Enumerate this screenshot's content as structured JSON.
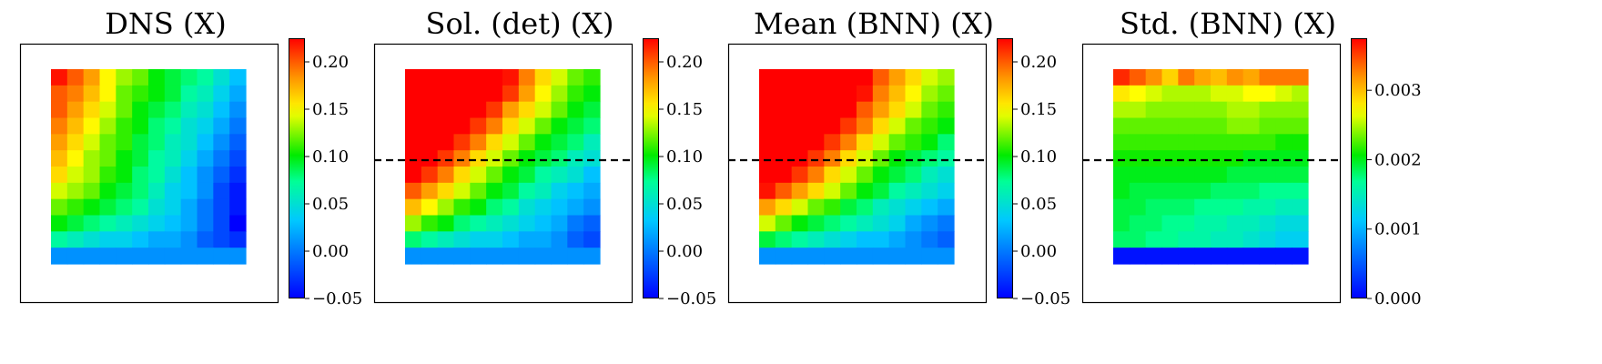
{
  "chart_data": [
    {
      "type": "heatmap",
      "title": "DNS (X)",
      "colorbar": {
        "min": -0.05,
        "max": 0.225,
        "ticks": [
          -0.05,
          0.0,
          0.05,
          0.1,
          0.15,
          0.2
        ],
        "tick_labels": [
          "−0.05",
          "0.00",
          "0.05",
          "0.10",
          "0.15",
          "0.20"
        ]
      },
      "dashed_line": false,
      "grid": [
        [
          0.22,
          0.2,
          0.18,
          0.15,
          0.13,
          0.12,
          0.1,
          0.09,
          0.08,
          0.07,
          0.05,
          0.03
        ],
        [
          0.2,
          0.19,
          0.17,
          0.15,
          0.12,
          0.11,
          0.1,
          0.09,
          0.07,
          0.06,
          0.04,
          0.02
        ],
        [
          0.2,
          0.18,
          0.16,
          0.14,
          0.12,
          0.1,
          0.09,
          0.08,
          0.06,
          0.05,
          0.03,
          0.01
        ],
        [
          0.19,
          0.17,
          0.15,
          0.13,
          0.11,
          0.1,
          0.08,
          0.07,
          0.05,
          0.04,
          0.02,
          0.0
        ],
        [
          0.18,
          0.16,
          0.14,
          0.12,
          0.11,
          0.09,
          0.08,
          0.06,
          0.05,
          0.03,
          0.01,
          -0.01
        ],
        [
          0.17,
          0.15,
          0.13,
          0.12,
          0.1,
          0.09,
          0.07,
          0.06,
          0.04,
          0.02,
          0.0,
          -0.02
        ],
        [
          0.16,
          0.14,
          0.13,
          0.11,
          0.1,
          0.08,
          0.07,
          0.05,
          0.03,
          0.01,
          -0.01,
          -0.03
        ],
        [
          0.14,
          0.13,
          0.12,
          0.1,
          0.09,
          0.08,
          0.06,
          0.04,
          0.03,
          0.01,
          -0.02,
          -0.04
        ],
        [
          0.12,
          0.11,
          0.1,
          0.09,
          0.08,
          0.07,
          0.05,
          0.04,
          0.02,
          0.0,
          -0.02,
          -0.04
        ],
        [
          0.1,
          0.09,
          0.08,
          0.07,
          0.06,
          0.05,
          0.04,
          0.03,
          0.02,
          0.0,
          -0.02,
          -0.05
        ],
        [
          0.07,
          0.06,
          0.05,
          0.04,
          0.04,
          0.03,
          0.02,
          0.02,
          0.01,
          -0.01,
          -0.02,
          -0.03
        ],
        [
          0.01,
          0.01,
          0.01,
          0.01,
          0.01,
          0.01,
          0.01,
          0.01,
          0.01,
          0.01,
          0.01,
          0.01
        ]
      ]
    },
    {
      "type": "heatmap",
      "title": "Sol. (det) (X)",
      "colorbar": {
        "min": -0.05,
        "max": 0.225,
        "ticks": [
          -0.05,
          0.0,
          0.05,
          0.1,
          0.15,
          0.2
        ],
        "tick_labels": [
          "−0.05",
          "0.00",
          "0.05",
          "0.10",
          "0.15",
          "0.20"
        ]
      },
      "dashed_line": true,
      "grid": [
        [
          0.23,
          0.23,
          0.23,
          0.23,
          0.23,
          0.23,
          0.22,
          0.19,
          0.16,
          0.14,
          0.12,
          0.11
        ],
        [
          0.23,
          0.23,
          0.23,
          0.23,
          0.23,
          0.23,
          0.21,
          0.18,
          0.15,
          0.13,
          0.11,
          0.1
        ],
        [
          0.23,
          0.23,
          0.23,
          0.23,
          0.23,
          0.21,
          0.18,
          0.16,
          0.14,
          0.12,
          0.1,
          0.09
        ],
        [
          0.23,
          0.23,
          0.23,
          0.23,
          0.21,
          0.19,
          0.16,
          0.14,
          0.12,
          0.1,
          0.09,
          0.08
        ],
        [
          0.23,
          0.23,
          0.23,
          0.21,
          0.19,
          0.16,
          0.14,
          0.12,
          0.1,
          0.09,
          0.08,
          0.06
        ],
        [
          0.23,
          0.23,
          0.21,
          0.19,
          0.16,
          0.14,
          0.12,
          0.1,
          0.09,
          0.08,
          0.06,
          0.05
        ],
        [
          0.23,
          0.21,
          0.19,
          0.16,
          0.14,
          0.12,
          0.1,
          0.09,
          0.07,
          0.06,
          0.05,
          0.03
        ],
        [
          0.2,
          0.18,
          0.16,
          0.14,
          0.12,
          0.1,
          0.09,
          0.07,
          0.06,
          0.04,
          0.03,
          0.02
        ],
        [
          0.17,
          0.15,
          0.13,
          0.11,
          0.1,
          0.08,
          0.07,
          0.05,
          0.04,
          0.03,
          0.02,
          0.01
        ],
        [
          0.13,
          0.11,
          0.1,
          0.08,
          0.07,
          0.06,
          0.05,
          0.04,
          0.03,
          0.02,
          0.0,
          -0.01
        ],
        [
          0.08,
          0.07,
          0.06,
          0.05,
          0.04,
          0.04,
          0.03,
          0.02,
          0.02,
          0.01,
          -0.01,
          -0.02
        ],
        [
          0.01,
          0.01,
          0.01,
          0.01,
          0.01,
          0.01,
          0.01,
          0.01,
          0.01,
          0.01,
          0.01,
          0.01
        ]
      ]
    },
    {
      "type": "heatmap",
      "title": "Mean (BNN) (X)",
      "colorbar": {
        "min": -0.05,
        "max": 0.225,
        "ticks": [
          -0.05,
          0.0,
          0.05,
          0.1,
          0.15,
          0.2
        ],
        "tick_labels": [
          "−0.05",
          "0.00",
          "0.05",
          "0.10",
          "0.15",
          "0.20"
        ]
      },
      "dashed_line": true,
      "grid": [
        [
          0.23,
          0.23,
          0.23,
          0.23,
          0.23,
          0.23,
          0.23,
          0.2,
          0.18,
          0.16,
          0.14,
          0.13
        ],
        [
          0.23,
          0.23,
          0.23,
          0.23,
          0.23,
          0.23,
          0.22,
          0.19,
          0.17,
          0.15,
          0.13,
          0.12
        ],
        [
          0.23,
          0.23,
          0.23,
          0.23,
          0.23,
          0.23,
          0.2,
          0.18,
          0.16,
          0.14,
          0.12,
          0.11
        ],
        [
          0.23,
          0.23,
          0.23,
          0.23,
          0.23,
          0.21,
          0.19,
          0.16,
          0.14,
          0.12,
          0.11,
          0.1
        ],
        [
          0.23,
          0.23,
          0.23,
          0.23,
          0.21,
          0.19,
          0.16,
          0.14,
          0.12,
          0.11,
          0.1,
          0.08
        ],
        [
          0.23,
          0.23,
          0.23,
          0.21,
          0.19,
          0.16,
          0.14,
          0.12,
          0.1,
          0.09,
          0.08,
          0.07
        ],
        [
          0.23,
          0.23,
          0.21,
          0.19,
          0.16,
          0.14,
          0.12,
          0.1,
          0.09,
          0.08,
          0.06,
          0.05
        ],
        [
          0.22,
          0.2,
          0.18,
          0.16,
          0.14,
          0.12,
          0.1,
          0.09,
          0.07,
          0.06,
          0.05,
          0.04
        ],
        [
          0.18,
          0.16,
          0.14,
          0.12,
          0.11,
          0.09,
          0.08,
          0.06,
          0.05,
          0.04,
          0.03,
          0.02
        ],
        [
          0.14,
          0.12,
          0.1,
          0.09,
          0.08,
          0.07,
          0.06,
          0.05,
          0.04,
          0.02,
          0.01,
          0.0
        ],
        [
          0.09,
          0.08,
          0.07,
          0.06,
          0.05,
          0.04,
          0.03,
          0.03,
          0.02,
          0.01,
          0.0,
          -0.01
        ],
        [
          0.01,
          0.01,
          0.01,
          0.01,
          0.01,
          0.01,
          0.01,
          0.01,
          0.01,
          0.01,
          0.01,
          0.01
        ]
      ]
    },
    {
      "type": "heatmap",
      "title": "Std. (BNN) (X)",
      "colorbar": {
        "min": 0.0,
        "max": 0.00375,
        "ticks": [
          0.0,
          0.001,
          0.002,
          0.003
        ],
        "tick_labels": [
          "0.000",
          "0.001",
          "0.002",
          "0.003"
        ]
      },
      "dashed_line": true,
      "grid": [
        [
          0.0036,
          0.0034,
          0.0032,
          0.0029,
          0.0033,
          0.0031,
          0.003,
          0.0032,
          0.0031,
          0.0033,
          0.0033,
          0.0033
        ],
        [
          0.0028,
          0.0027,
          0.0026,
          0.0025,
          0.0025,
          0.0025,
          0.0026,
          0.0026,
          0.0027,
          0.0027,
          0.0026,
          0.0025
        ],
        [
          0.0025,
          0.0025,
          0.0024,
          0.0024,
          0.0024,
          0.0024,
          0.0024,
          0.0025,
          0.0025,
          0.0024,
          0.0024,
          0.0024
        ],
        [
          0.0023,
          0.0023,
          0.0023,
          0.0023,
          0.0023,
          0.0023,
          0.0023,
          0.0024,
          0.0024,
          0.0023,
          0.0023,
          0.0023
        ],
        [
          0.0022,
          0.0022,
          0.0022,
          0.0022,
          0.0022,
          0.0022,
          0.0022,
          0.0022,
          0.0022,
          0.0022,
          0.0021,
          0.0021
        ],
        [
          0.0021,
          0.0021,
          0.0021,
          0.0021,
          0.0021,
          0.0021,
          0.0021,
          0.0021,
          0.002,
          0.002,
          0.002,
          0.002
        ],
        [
          0.002,
          0.002,
          0.002,
          0.002,
          0.002,
          0.002,
          0.002,
          0.0019,
          0.0019,
          0.0019,
          0.0019,
          0.0019
        ],
        [
          0.002,
          0.0019,
          0.0019,
          0.0019,
          0.0019,
          0.0019,
          0.0018,
          0.0018,
          0.0018,
          0.0017,
          0.0017,
          0.0017
        ],
        [
          0.0019,
          0.0019,
          0.0018,
          0.0018,
          0.0018,
          0.0017,
          0.0017,
          0.0017,
          0.0016,
          0.0016,
          0.0015,
          0.0015
        ],
        [
          0.0019,
          0.0018,
          0.0018,
          0.0017,
          0.0017,
          0.0016,
          0.0016,
          0.0015,
          0.0015,
          0.0014,
          0.0013,
          0.0013
        ],
        [
          0.0018,
          0.0018,
          0.0017,
          0.0017,
          0.0016,
          0.0016,
          0.0015,
          0.0015,
          0.0014,
          0.0013,
          0.0012,
          0.0012
        ],
        [
          0.0001,
          0.0001,
          0.0001,
          0.0001,
          0.0001,
          0.0001,
          0.0001,
          0.0001,
          0.0001,
          0.0001,
          0.0001,
          0.0001
        ]
      ]
    }
  ]
}
